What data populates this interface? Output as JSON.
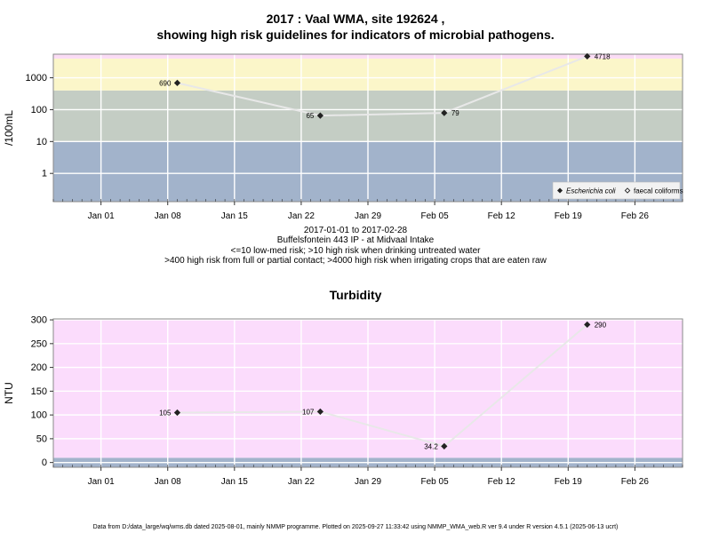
{
  "chart_data": [
    {
      "type": "line",
      "title_line1": "2017 : Vaal WMA, site 192624 ,",
      "title_line2": "showing high risk guidelines for indicators of microbial pathogens.",
      "ylabel": "/100mL",
      "y_scale": "log",
      "ylim": [
        0.13,
        5500
      ],
      "y_ticks": [
        1,
        10,
        100,
        1000
      ],
      "y_tick_labels": [
        "1",
        "10",
        "100",
        "1000"
      ],
      "xlim": [
        "2016-12-27",
        "2017-03-03"
      ],
      "x_ticks": [
        "2017-01-01",
        "2017-01-08",
        "2017-01-15",
        "2017-01-22",
        "2017-01-29",
        "2017-02-05",
        "2017-02-12",
        "2017-02-19",
        "2017-02-26"
      ],
      "x_tick_labels": [
        "Jan 01",
        "Jan 08",
        "Jan 15",
        "Jan 22",
        "Jan 29",
        "Feb 05",
        "Feb 12",
        "Feb 19",
        "Feb 26"
      ],
      "risk_bands": [
        {
          "from": 0.13,
          "to": 10,
          "color": "#a2b3cb"
        },
        {
          "from": 10,
          "to": 400,
          "color": "#c4cdc4"
        },
        {
          "from": 400,
          "to": 4000,
          "color": "#fbf6c9"
        },
        {
          "from": 4000,
          "to": 5500,
          "color": "#fbdcf5"
        }
      ],
      "series": [
        {
          "name": "Escherichia coli",
          "marker": "filled-diamond",
          "color": "#222222",
          "x": [
            "2017-01-09",
            "2017-01-24",
            "2017-02-06",
            "2017-02-21"
          ],
          "values": [
            690,
            65,
            79,
            4718
          ],
          "labels": [
            "690",
            "65",
            "79",
            "4718"
          ]
        }
      ],
      "legend": {
        "position": "bottom-right",
        "entries": [
          {
            "label": "Escherichia coli",
            "marker": "filled-diamond",
            "italic": true
          },
          {
            "label": "faecal coliforms",
            "marker": "open-diamond",
            "italic": false
          }
        ]
      },
      "grid": true,
      "caption": [
        "2017-01-01 to 2017-02-28",
        "Buffelsfontein 443 IP - at Midvaal Intake",
        "<=10 low-med risk; >10 high risk when drinking untreated water",
        ">400 high risk from full or partial contact; >4000 high risk when irrigating crops that are eaten raw"
      ]
    },
    {
      "type": "line",
      "title": "Turbidity",
      "ylabel": "NTU",
      "y_scale": "linear",
      "ylim": [
        -10,
        302
      ],
      "y_ticks": [
        0,
        50,
        100,
        150,
        200,
        250,
        300
      ],
      "y_tick_labels": [
        "0",
        "50",
        "100",
        "150",
        "200",
        "250",
        "300"
      ],
      "xlim": [
        "2016-12-27",
        "2017-03-03"
      ],
      "x_ticks": [
        "2017-01-01",
        "2017-01-08",
        "2017-01-15",
        "2017-01-22",
        "2017-01-29",
        "2017-02-05",
        "2017-02-12",
        "2017-02-19",
        "2017-02-26"
      ],
      "x_tick_labels": [
        "Jan 01",
        "Jan 08",
        "Jan 15",
        "Jan 22",
        "Jan 29",
        "Feb 05",
        "Feb 12",
        "Feb 19",
        "Feb 26"
      ],
      "risk_bands": [
        {
          "from": -10,
          "to": 10,
          "color": "#a2b3cb"
        },
        {
          "from": 10,
          "to": 302,
          "color": "#fbdcfc"
        }
      ],
      "series": [
        {
          "name": "",
          "marker": "filled-diamond",
          "color": "#222222",
          "x": [
            "2017-01-09",
            "2017-01-24",
            "2017-02-06",
            "2017-02-21"
          ],
          "values": [
            105,
            107,
            34.2,
            290
          ],
          "labels": [
            "105",
            "107",
            "34.2",
            "290"
          ]
        }
      ],
      "grid": true
    }
  ],
  "footer": "Data from D:/data_large/wq/wms.db dated 2025-08-01, mainly NMMP programme. Plotted on 2025-09-27 11:33:42 using NMMP_WMA_web.R ver 9.4 under R version 4.5.1 (2025-06-13 ucrt)"
}
